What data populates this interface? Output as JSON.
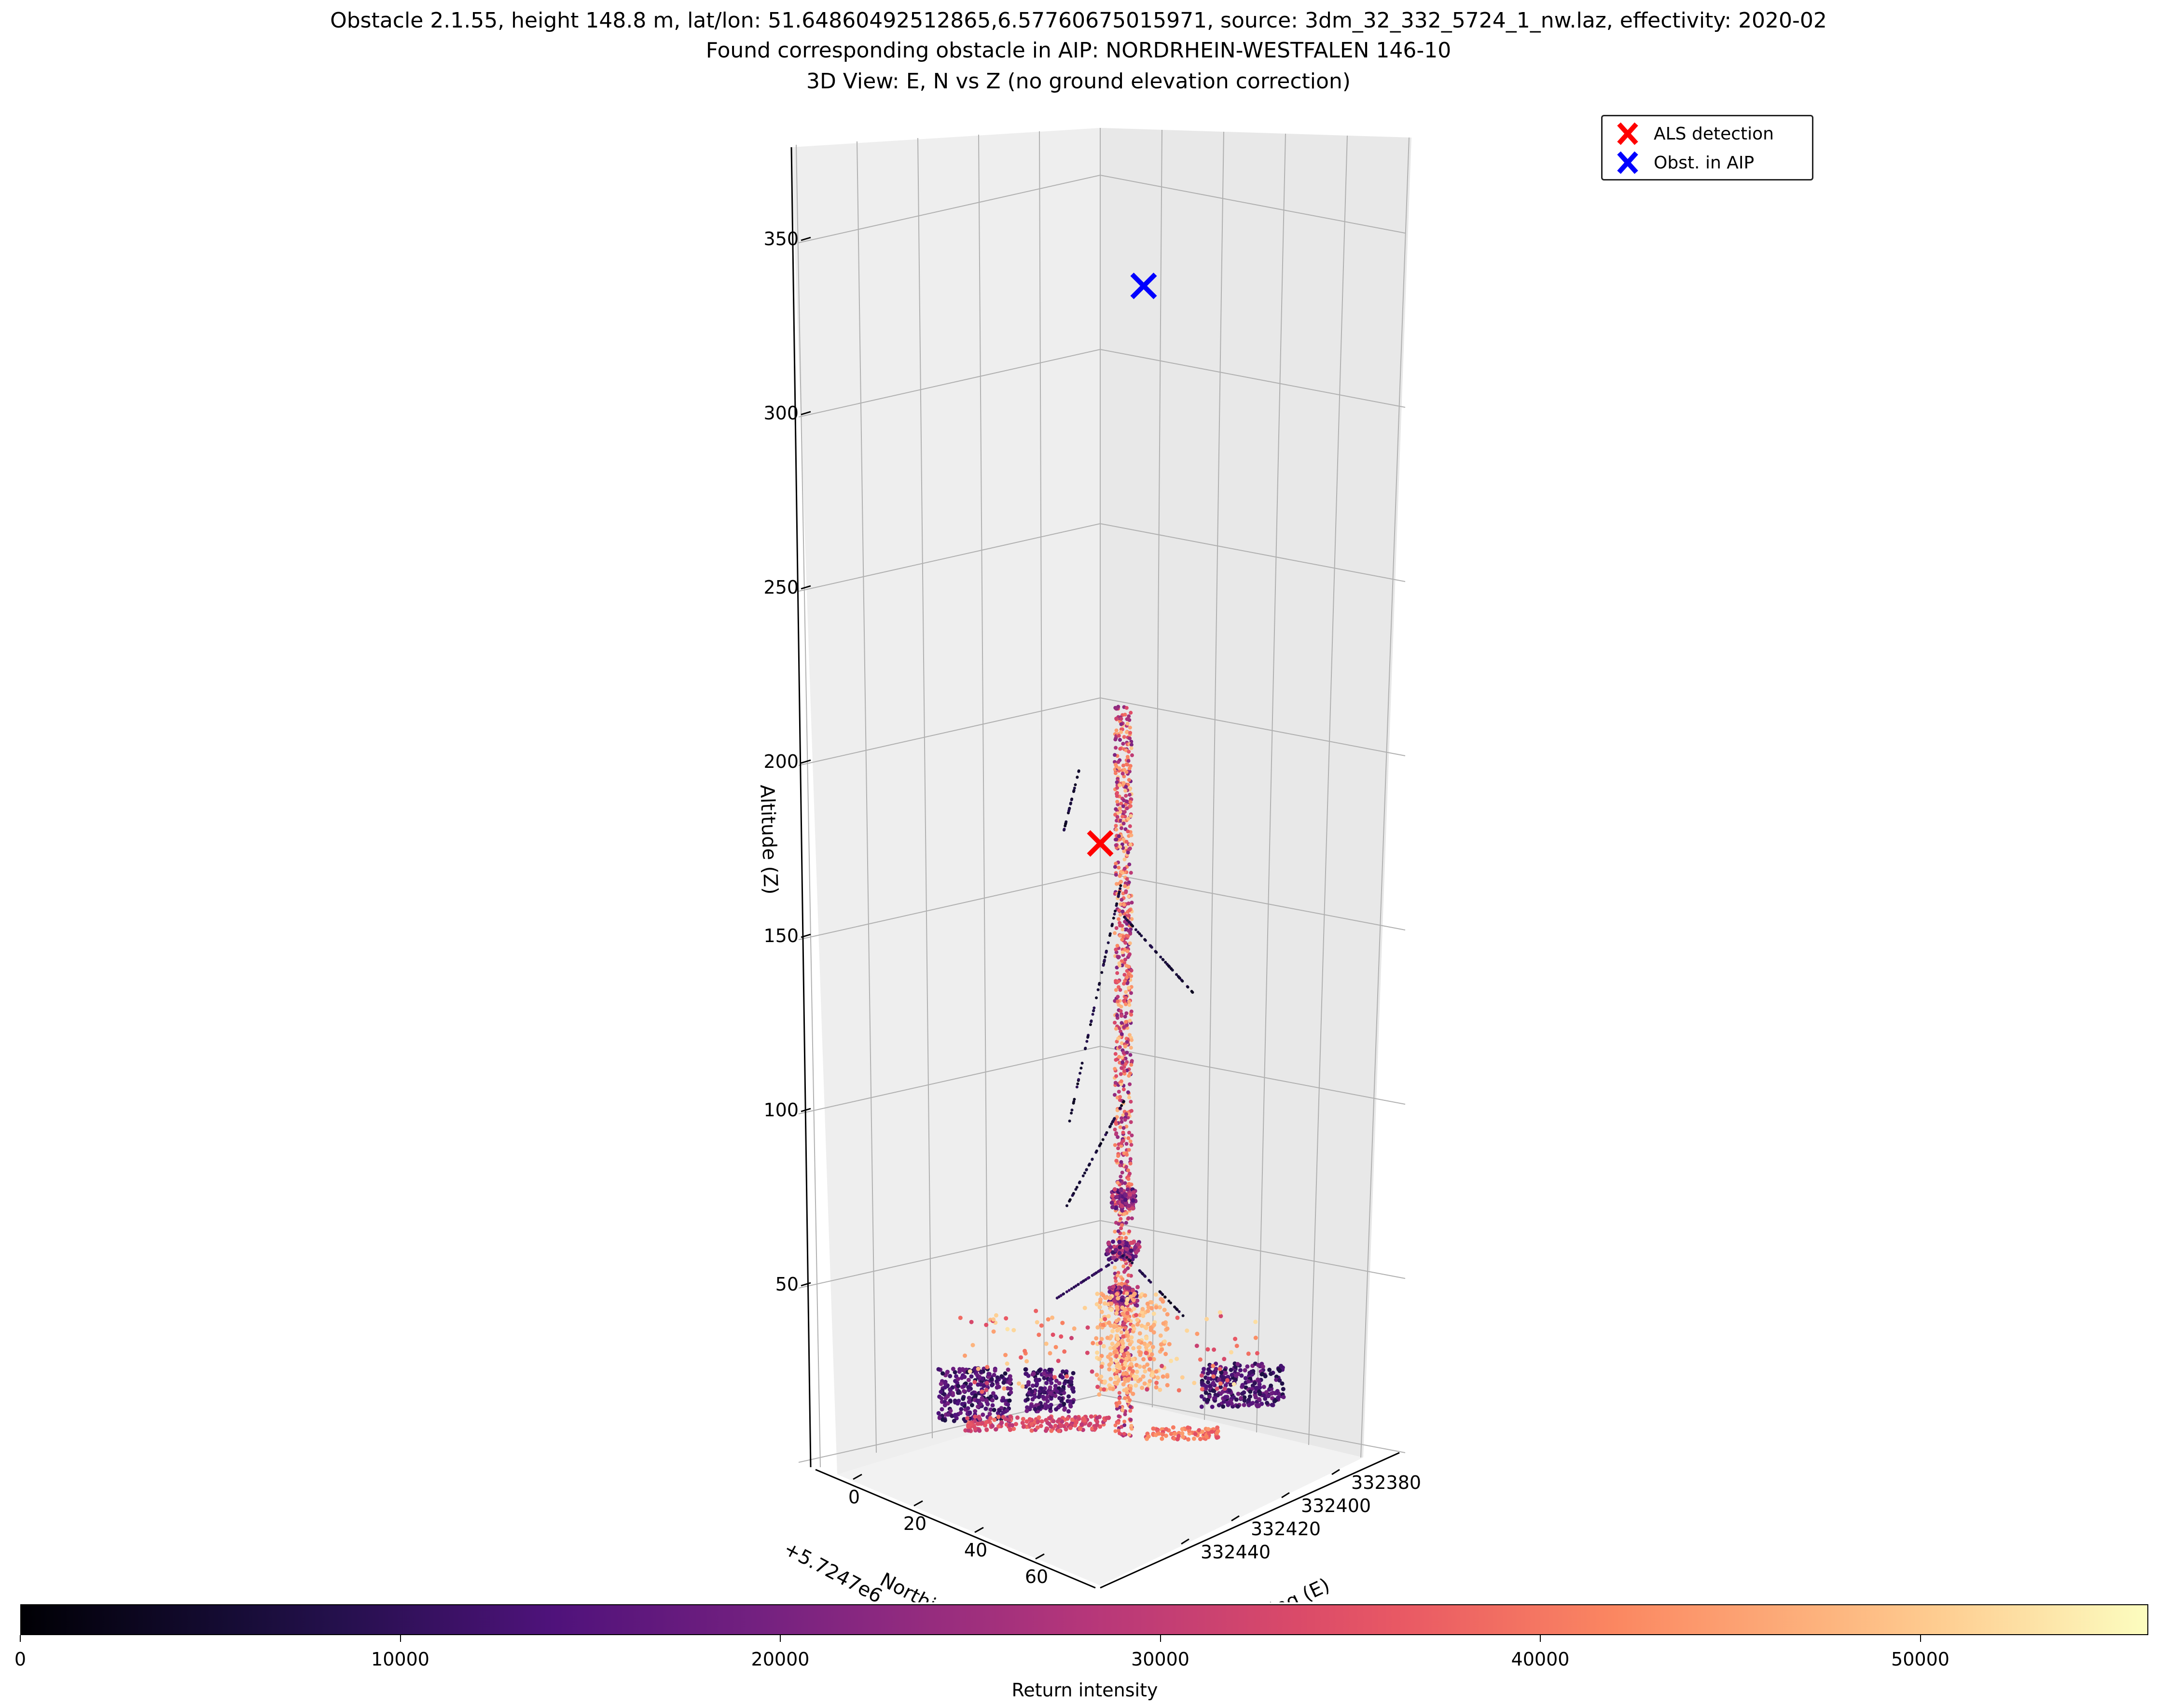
{
  "figure": {
    "title_lines": [
      "Obstacle 2.1.55, height 148.8 m, lat/lon: 51.64860492512865,6.57760675015971, source: 3dm_32_332_5724_1_nw.laz, effectivity: 2020-02",
      "Found corresponding obstacle in AIP: NORDRHEIN-WESTFALEN 146-10",
      "3D View: E, N vs Z (no ground elevation correction)"
    ]
  },
  "chart_data": {
    "type": "scatter",
    "projection": "3d",
    "z_axis": {
      "label": "Altitude (Z)",
      "ticks": [
        "50",
        "100",
        "150",
        "200",
        "250",
        "300",
        "350"
      ]
    },
    "north_axis": {
      "label": "Northing (N)",
      "offset_text": "+5.7247e6",
      "ticks": [
        "0",
        "20",
        "40",
        "60"
      ]
    },
    "east_axis": {
      "label": "Easting (E)",
      "ticks": [
        "332380",
        "332400",
        "332420",
        "332440"
      ]
    },
    "legend_position": "top-right",
    "grid": true,
    "markers": [
      {
        "name": "ALS detection",
        "color": "#ff0000",
        "z": 170
      },
      {
        "name": "Obst. in AIP",
        "color": "#0000ff",
        "z": 330
      }
    ],
    "point_cloud": {
      "description_colormap": "magma",
      "z_range": [
        0,
        210
      ]
    },
    "colorbar": {
      "label": "Return intensity",
      "min": 0,
      "max": 56000,
      "ticks": [
        "0",
        "10000",
        "20000",
        "30000",
        "40000",
        "50000"
      ],
      "tick_values": [
        0,
        10000,
        20000,
        30000,
        40000,
        50000
      ]
    }
  }
}
